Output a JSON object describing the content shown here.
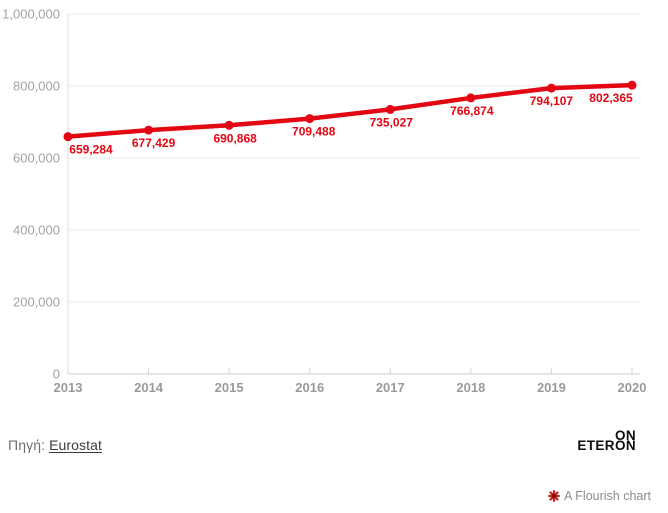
{
  "chart_data": {
    "type": "line",
    "title": "",
    "xlabel": "",
    "ylabel": "",
    "categories": [
      "2013",
      "2014",
      "2015",
      "2016",
      "2017",
      "2018",
      "2019",
      "2020"
    ],
    "values": [
      659284,
      677429,
      690868,
      709488,
      735027,
      766874,
      794107,
      802365
    ],
    "point_labels": [
      "659,284",
      "677,429",
      "690,868",
      "709,488",
      "735,027",
      "766,874",
      "794,107",
      "802,365"
    ],
    "ylim": [
      0,
      1000000
    ],
    "yticks": [
      0,
      200000,
      400000,
      600000,
      800000,
      1000000
    ],
    "ytick_labels": [
      "0",
      "200,000",
      "400,000",
      "600,000",
      "800,000",
      "1,000,000"
    ],
    "grid": true,
    "legend": "none",
    "line_color": "#e30613",
    "label_color": "#e30613"
  },
  "footer": {
    "source_prefix": "Πηγή:",
    "source_link": "Eurostat",
    "logo_top": "ON",
    "logo_bottom": "ETERON"
  },
  "attribution": {
    "label": "A Flourish chart",
    "icon_color": "#c9281e"
  }
}
